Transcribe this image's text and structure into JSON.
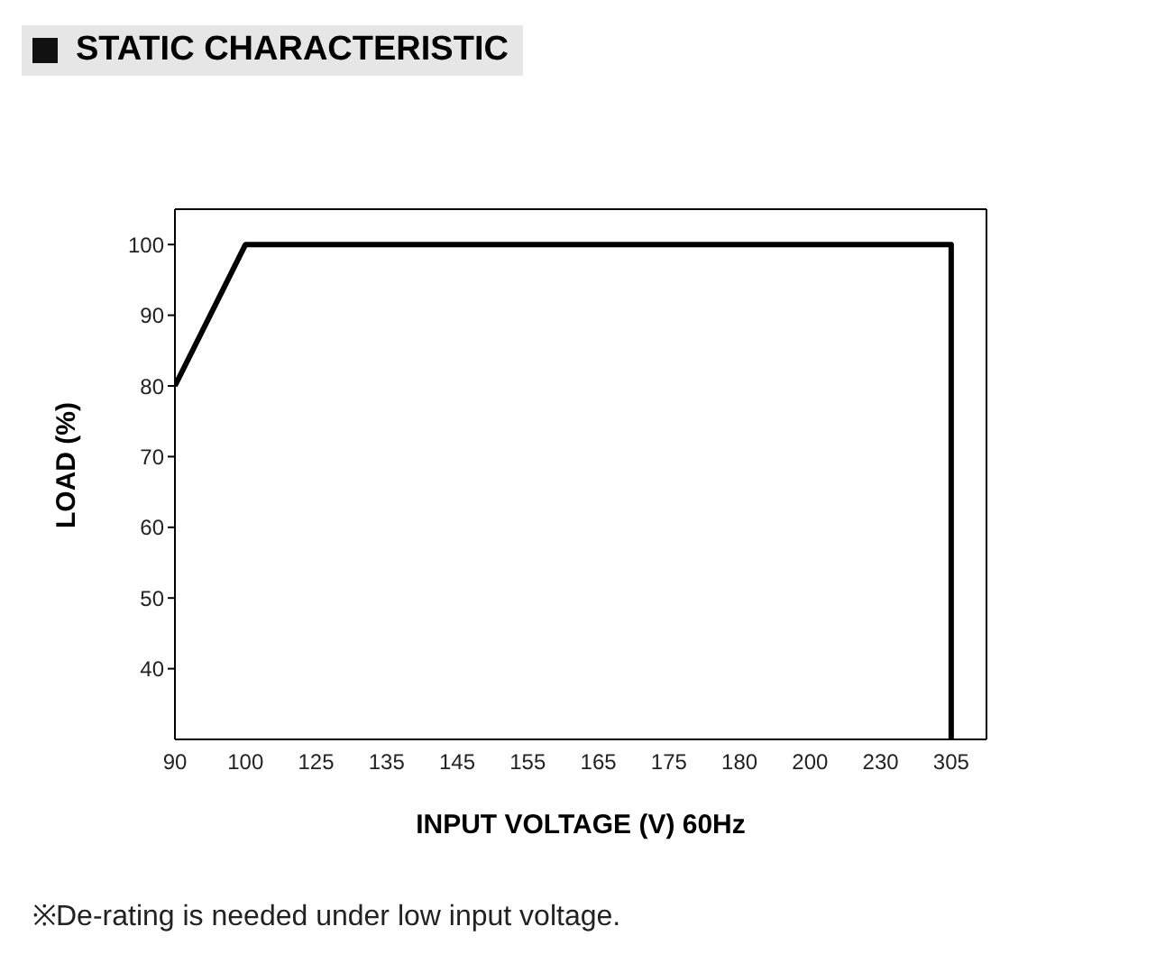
{
  "chart_data": {
    "type": "line",
    "title": "STATIC CHARACTERISTIC",
    "xlabel": "INPUT VOLTAGE (V) 60Hz",
    "ylabel": "LOAD (%)",
    "categories": [
      "90",
      "100",
      "125",
      "135",
      "145",
      "155",
      "165",
      "175",
      "180",
      "200",
      "230",
      "305"
    ],
    "series": [
      {
        "color": "#000000",
        "x": [
          "90",
          "100",
          "305",
          "305"
        ],
        "values": [
          80,
          100,
          100,
          30
        ]
      }
    ],
    "ylim": [
      30,
      105
    ],
    "yticks": [
      40,
      50,
      60,
      70,
      80,
      90,
      100
    ],
    "marker": "none",
    "line_style": "solid",
    "annotations": [
      "※De-rating is needed under low input voltage."
    ]
  }
}
